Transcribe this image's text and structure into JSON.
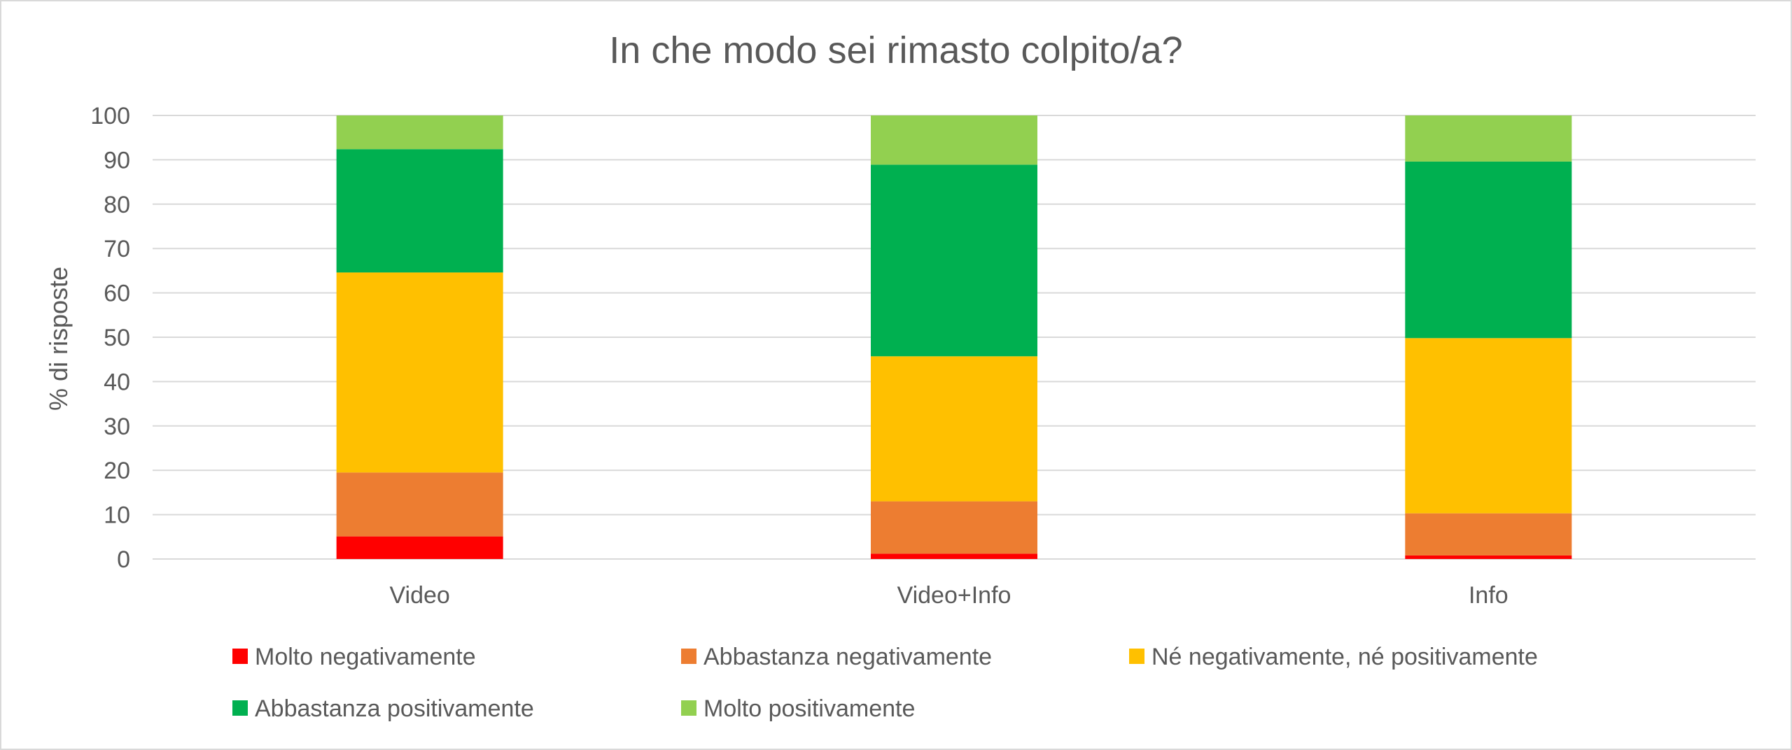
{
  "chart_data": {
    "type": "bar",
    "stacked": true,
    "title": "In che modo sei rimasto colpito/a?",
    "xlabel": "",
    "ylabel": "% di risposte",
    "ylim": [
      0,
      100
    ],
    "yticks": [
      "0",
      "10",
      "20",
      "30",
      "40",
      "50",
      "60",
      "70",
      "80",
      "90",
      "100"
    ],
    "grid": true,
    "legend_position": "bottom",
    "categories": [
      "Video",
      "Video+Info",
      "Info"
    ],
    "series": [
      {
        "name": "Molto negativamente",
        "color": "#ff0000",
        "values": [
          5.1,
          1.2,
          0.8
        ]
      },
      {
        "name": "Abbastanza negativamente",
        "color": "#ed7d31",
        "values": [
          14.4,
          11.8,
          9.5
        ]
      },
      {
        "name": "Né negativamente, né positivamente",
        "color": "#ffc000",
        "values": [
          45.1,
          32.7,
          39.5
        ]
      },
      {
        "name": "Abbastanza positivamente",
        "color": "#00b050",
        "values": [
          27.8,
          43.2,
          39.8
        ]
      },
      {
        "name": "Molto positivamente",
        "color": "#92d050",
        "values": [
          7.6,
          11.1,
          10.4
        ]
      }
    ]
  }
}
